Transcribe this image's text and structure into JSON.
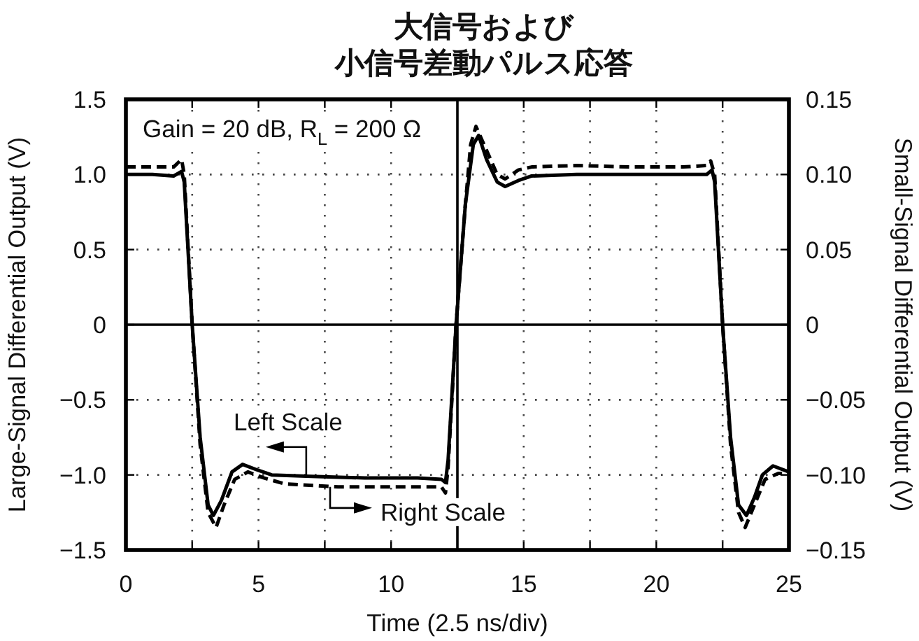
{
  "chart_data": {
    "type": "line",
    "title": "大信号および小信号差動パルス応答",
    "xlabel": "Time (2.5 ns/div)",
    "ylabel": "Large-Signal Differential Output (V)",
    "y2label": "Small-Signal Differential Output (V)",
    "xlim": [
      0,
      25
    ],
    "xticks": [
      0,
      {
        "value": 2.5,
        "label": null
      },
      5,
      {
        "value": 7.5,
        "label": null
      },
      10,
      15,
      {
        "value": 17.5,
        "label": null
      },
      20,
      {
        "value": 22.5,
        "label": null
      },
      25
    ],
    "ylim": [
      -1.5,
      1.5
    ],
    "yticks": [
      {
        "value": -1.5,
        "label": "−1.5"
      },
      {
        "value": -1,
        "label": "−1.0"
      },
      {
        "value": -0.5,
        "label": "−0.5"
      },
      0,
      0.5,
      {
        "value": 1,
        "label": "1.0"
      },
      1.5
    ],
    "y2lim": [
      -0.15,
      0.15
    ],
    "y2ticks": [
      {
        "value": -0.15,
        "label": "−0.15"
      },
      {
        "value": -0.1,
        "label": "−0.10"
      },
      {
        "value": -0.05,
        "label": "−0.05"
      },
      0,
      0.05,
      {
        "value": 0.1,
        "label": "0.10"
      },
      0.15
    ],
    "grid": true,
    "ref_lines": [
      {
        "axis": "x",
        "value": 12.5,
        "color": "#000000",
        "line_style": "solid"
      },
      {
        "axis": "y",
        "value": 0,
        "color": "#000000",
        "line_style": "solid"
      }
    ],
    "series": [
      {
        "color": "#000000",
        "line_style": "solid",
        "x": [
          0,
          1,
          1.8,
          2.1,
          2.2,
          2.5,
          2.8,
          3.1,
          3.3,
          3.6,
          4,
          4.4,
          5,
          5.5,
          7,
          9,
          11,
          11.9,
          12.05,
          12.15,
          12.45,
          12.8,
          13.1,
          13.3,
          13.6,
          14,
          14.3,
          14.8,
          15.3,
          17,
          19,
          21,
          21.9,
          22.1,
          22.2,
          22.5,
          22.8,
          23.1,
          23.4,
          23.7,
          24,
          24.4,
          25
        ],
        "values": [
          1,
          1,
          0.99,
          1.02,
          0.95,
          0,
          -0.75,
          -1.2,
          -1.27,
          -1.17,
          -0.98,
          -0.93,
          -0.97,
          -1,
          -1.01,
          -1.02,
          -1.02,
          -1.03,
          -1.05,
          -0.9,
          0,
          0.8,
          1.2,
          1.26,
          1.1,
          0.95,
          0.92,
          0.96,
          0.99,
          1,
          1,
          1,
          1,
          1.03,
          0.95,
          0,
          -0.75,
          -1.2,
          -1.27,
          -1.15,
          -1,
          -0.94,
          -0.98
        ]
      },
      {
        "color": "#000000",
        "line_style": "dashed",
        "axis": "y2",
        "x": [
          0,
          1,
          1.8,
          2.1,
          2.2,
          2.5,
          2.8,
          3.1,
          3.4,
          3.7,
          4.1,
          4.6,
          5.2,
          6,
          8,
          10,
          11.9,
          12.05,
          12.15,
          12.45,
          12.8,
          13,
          13.2,
          13.5,
          14,
          14.3,
          14.8,
          15.3,
          17,
          19,
          21,
          21.9,
          22.05,
          22.2,
          22.5,
          22.8,
          23.1,
          23.35,
          23.7,
          24.1,
          24.6,
          25
        ],
        "values": [
          0.105,
          0.105,
          0.105,
          0.11,
          0.1,
          0,
          -0.08,
          -0.125,
          -0.135,
          -0.12,
          -0.103,
          -0.098,
          -0.102,
          -0.106,
          -0.108,
          -0.108,
          -0.108,
          -0.112,
          -0.095,
          0,
          0.08,
          0.12,
          0.132,
          0.12,
          0.1,
          0.097,
          0.103,
          0.105,
          0.106,
          0.105,
          0.105,
          0.106,
          0.109,
          0.1,
          0,
          -0.08,
          -0.125,
          -0.135,
          -0.12,
          -0.103,
          -0.099,
          -0.099
        ]
      }
    ],
    "annotations": [
      "Gain = 20 dB, R$_{L}$ = 200 Ω",
      {
        "text": "Left Scale",
        "x": 6.8,
        "y": -1.01
      },
      {
        "text": "Right Scale",
        "x": 7.7,
        "y": -1.08
      }
    ]
  }
}
